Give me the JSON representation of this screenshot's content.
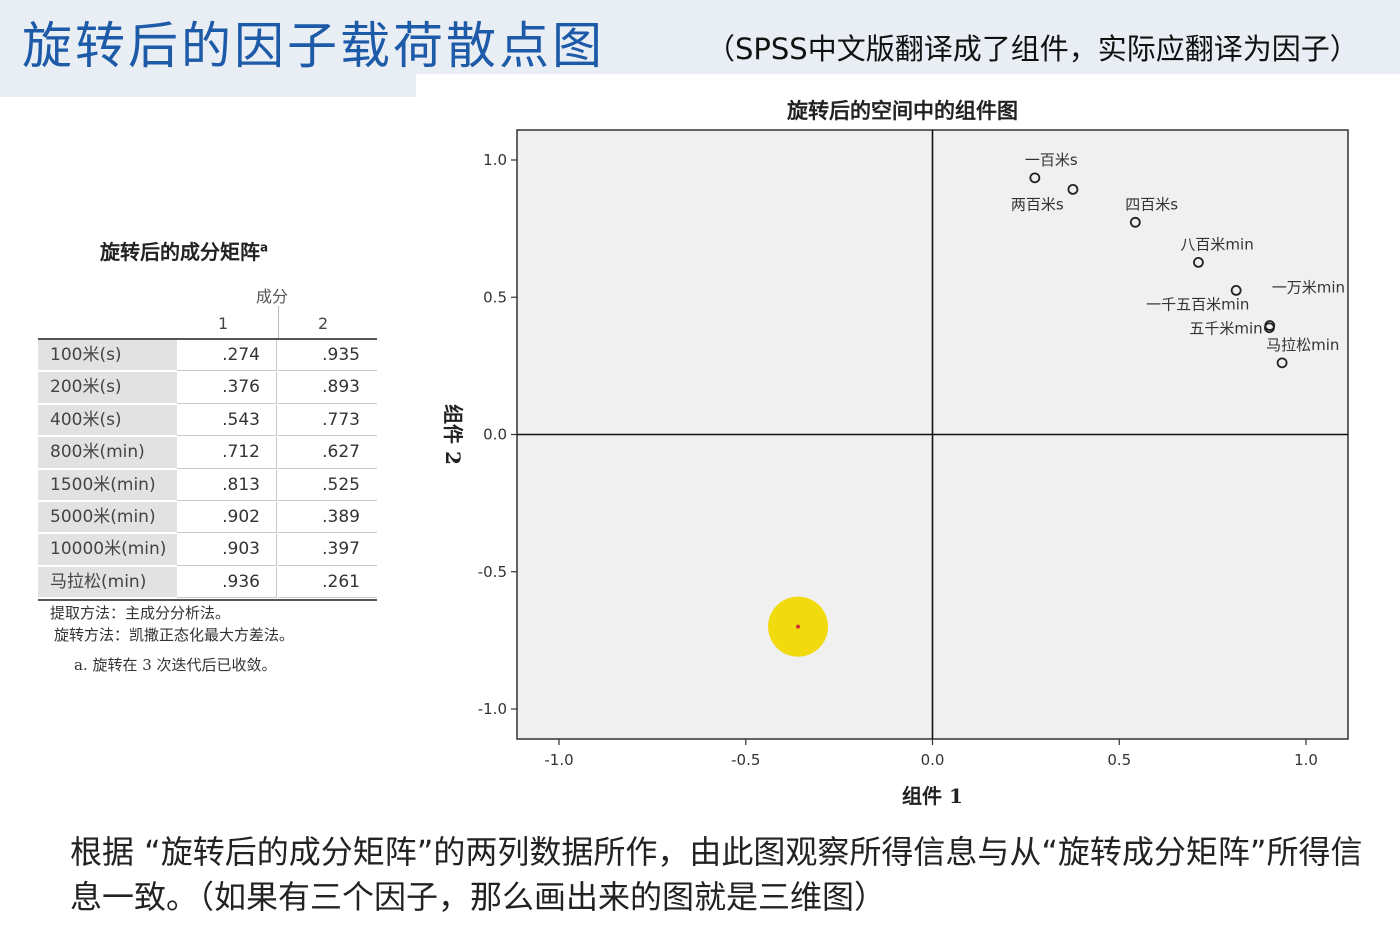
{
  "header": {
    "title": "旋转后的因子载荷散点图",
    "note": "（SPSS中文版翻译成了组件，实际应翻译为因子）"
  },
  "matrix": {
    "title": "旋转后的成分矩阵",
    "title_sup": "a",
    "component_label": "成分",
    "col_headers": [
      "1",
      "2"
    ],
    "rows": [
      {
        "label": "100米(s)",
        "c1": ".274",
        "c2": ".935"
      },
      {
        "label": "200米(s)",
        "c1": ".376",
        "c2": ".893"
      },
      {
        "label": "400米(s)",
        "c1": ".543",
        "c2": ".773"
      },
      {
        "label": "800米(min)",
        "c1": ".712",
        "c2": ".627"
      },
      {
        "label": "1500米(min)",
        "c1": ".813",
        "c2": ".525"
      },
      {
        "label": "5000米(min)",
        "c1": ".902",
        "c2": ".389"
      },
      {
        "label": "10000米(min)",
        "c1": ".903",
        "c2": ".397"
      },
      {
        "label": "马拉松(min)",
        "c1": ".936",
        "c2": ".261"
      }
    ],
    "notes": [
      "提取方法：主成分分析法。",
      "旋转方法：凯撒正态化最大方差法。",
      "a. 旋转在 3 次迭代后已收敛。"
    ]
  },
  "chart_data": {
    "type": "scatter",
    "title": "旋转后的空间中的组件图",
    "xlabel": "组件 1",
    "ylabel": "组件 2",
    "xlim": [
      -1.0,
      1.0
    ],
    "ylim": [
      -1.0,
      1.0
    ],
    "xticks": [
      "-1.0",
      "-0.5",
      "0.0",
      "0.5",
      "1.0"
    ],
    "yticks": [
      "1.0",
      "0.5",
      "0.0",
      "-0.5",
      "-1.0"
    ],
    "reference_lines": "x=0 and y=0",
    "points": [
      {
        "label": "一百米s",
        "x": 0.274,
        "y": 0.935
      },
      {
        "label": "两百米s",
        "x": 0.376,
        "y": 0.893
      },
      {
        "label": "四百米s",
        "x": 0.543,
        "y": 0.773
      },
      {
        "label": "八百米min",
        "x": 0.712,
        "y": 0.627
      },
      {
        "label": "一千五百米min",
        "x": 0.813,
        "y": 0.525
      },
      {
        "label": "五千米min",
        "x": 0.902,
        "y": 0.389
      },
      {
        "label": "一万米min",
        "x": 0.903,
        "y": 0.397
      },
      {
        "label": "马拉松min",
        "x": 0.936,
        "y": 0.261
      }
    ],
    "cursor_highlight": {
      "x": -0.36,
      "y": -0.7,
      "color": "#f0d800"
    },
    "plot_background": "#f0f0f0"
  },
  "footer": {
    "text": "根据 “旋转后的成分矩阵”的两列数据所作，由此图观察所得信息与从“旋转成分矩阵”所得信息一致。（如果有三个因子，那么画出来的图就是三维图）"
  }
}
